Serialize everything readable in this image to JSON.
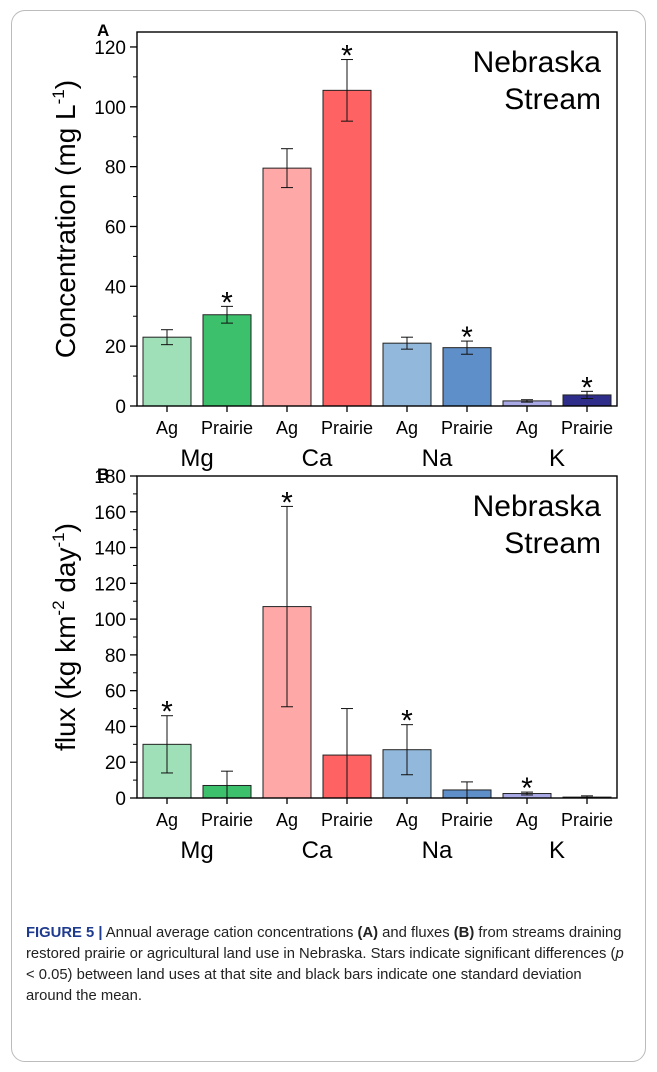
{
  "chart_data": [
    {
      "panel": "A",
      "type": "bar",
      "annotation": [
        "Nebraska",
        "Stream"
      ],
      "ylabel": "Concentration (mg L-1)",
      "ylabel_parts": {
        "main": "Concentration (mg L",
        "sup": "-1",
        "close": ")"
      },
      "ylim": [
        0,
        125
      ],
      "yticks": [
        0,
        20,
        40,
        60,
        80,
        100,
        120
      ],
      "groups": [
        "Mg",
        "Ca",
        "Na",
        "K"
      ],
      "categories": [
        "Ag",
        "Prairie",
        "Ag",
        "Prairie",
        "Ag",
        "Prairie",
        "Ag",
        "Prairie"
      ],
      "values": [
        23,
        30.5,
        79.5,
        105.5,
        21,
        19.5,
        1.7,
        3.7
      ],
      "errors": [
        2.5,
        2.8,
        6.5,
        10.3,
        2.0,
        2.2,
        0.4,
        1.2
      ],
      "significant": [
        false,
        true,
        false,
        true,
        false,
        true,
        false,
        true
      ],
      "colors": [
        "#9fe0b8",
        "#3cc06c",
        "#ffa8a8",
        "#ff6262",
        "#92b8dc",
        "#5f8fc8",
        "#a9a9e6",
        "#2e2e8a"
      ],
      "star_symbol": "*",
      "grid": false
    },
    {
      "panel": "B",
      "type": "bar",
      "annotation": [
        "Nebraska",
        "Stream"
      ],
      "ylabel": "flux (kg km-2 day-1)",
      "ylabel_parts": {
        "main": "flux (kg km",
        "sup": "-2",
        "mid": " day",
        "sup2": "-1",
        "close": ")"
      },
      "ylim": [
        0,
        180
      ],
      "yticks": [
        0,
        20,
        40,
        60,
        80,
        100,
        120,
        140,
        160,
        180
      ],
      "groups": [
        "Mg",
        "Ca",
        "Na",
        "K"
      ],
      "categories": [
        "Ag",
        "Prairie",
        "Ag",
        "Prairie",
        "Ag",
        "Prairie",
        "Ag",
        "Prairie"
      ],
      "values": [
        30,
        7,
        107,
        24,
        27,
        4.5,
        2.5,
        0.5
      ],
      "errors": [
        16,
        8,
        56,
        26,
        14,
        4.5,
        0.8,
        0.7
      ],
      "significant": [
        true,
        false,
        true,
        false,
        true,
        false,
        true,
        false
      ],
      "colors": [
        "#9fe0b8",
        "#3cc06c",
        "#ffa8a8",
        "#ff6262",
        "#92b8dc",
        "#5f8fc8",
        "#a9a9e6",
        "#2e2e8a"
      ],
      "star_symbol": "*",
      "grid": false
    }
  ],
  "caption": {
    "lead": "FIGURE 5 |",
    "t1": " Annual average cation concentrations ",
    "bA": "(A)",
    "t2": " and fluxes ",
    "bB": "(B)",
    "t3": " from streams draining restored prairie or agricultural land use in Nebraska. Stars indicate significant differences (",
    "p": "p",
    "t4": " < 0.05) between land uses at that site and black bars indicate one standard deviation around the mean."
  }
}
